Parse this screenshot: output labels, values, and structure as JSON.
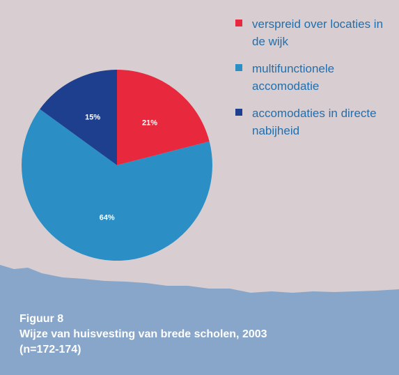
{
  "chart_data": {
    "type": "pie",
    "title": "Figuur 8",
    "subtitle": "Wijze van huisvesting van brede scholen, 2003 (n=172-174)",
    "categories": [
      "verspreid over locaties in de wijk",
      "multifunctionele accomodatie",
      "accomodaties in directe nabijheid"
    ],
    "values": [
      21,
      64,
      15
    ],
    "value_labels": [
      "21%",
      "64%",
      "15%"
    ],
    "colors": [
      "#e8283c",
      "#2b8fc6",
      "#1d3f8e"
    ],
    "legend": "top-right"
  }
}
